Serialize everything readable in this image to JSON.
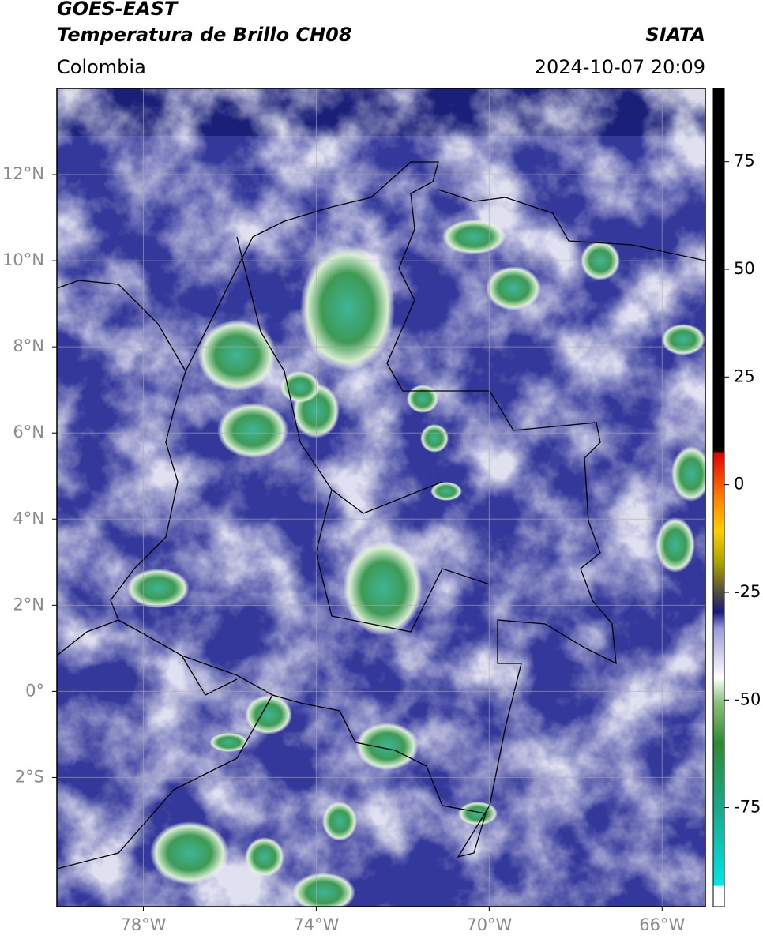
{
  "header": {
    "title_line1": "GOES-EAST",
    "title_line2": "Temperatura de Brillo CH08",
    "region": "Colombia",
    "source": "SIATA",
    "timestamp": "2024-10-07 20:09"
  },
  "map": {
    "lon_range": [
      -80,
      -65
    ],
    "lat_range": [
      -5,
      14
    ],
    "grid": true,
    "lon_ticks": [
      {
        "value": -78,
        "label": "78°W"
      },
      {
        "value": -74,
        "label": "74°W"
      },
      {
        "value": -70,
        "label": "70°W"
      },
      {
        "value": -66,
        "label": "66°W"
      }
    ],
    "lat_ticks": [
      {
        "value": 12,
        "label": "12°N"
      },
      {
        "value": 10,
        "label": "10°N"
      },
      {
        "value": 8,
        "label": "8°N"
      },
      {
        "value": 6,
        "label": "6°N"
      },
      {
        "value": 4,
        "label": "4°N"
      },
      {
        "value": 2,
        "label": "2°N"
      },
      {
        "value": 0,
        "label": "0°"
      },
      {
        "value": -2,
        "label": "2°S"
      }
    ]
  },
  "colorbar": {
    "range": [
      -98,
      92
    ],
    "ticks": [
      75,
      50,
      25,
      0,
      -25,
      -50,
      -75
    ]
  }
}
